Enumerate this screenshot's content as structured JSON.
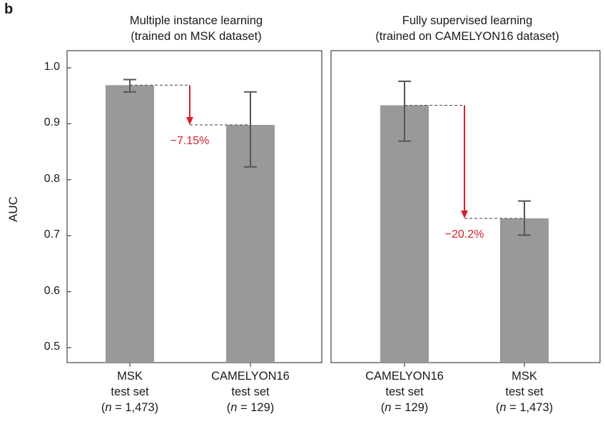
{
  "panel_label": "b",
  "y_axis_label": "AUC",
  "colors": {
    "bar": "#999999",
    "error": "#555555",
    "annotation": "#d61f2b",
    "frame": "#444444"
  },
  "chart_data": [
    {
      "type": "bar",
      "title": [
        "Multiple instance learning",
        "(trained on MSK dataset)"
      ],
      "ylabel": "AUC",
      "ylim": [
        0.47,
        1.03
      ],
      "yticks": [
        "0.5",
        "0.6",
        "0.7",
        "0.8",
        "0.9",
        "1.0"
      ],
      "categories": [
        {
          "lines": [
            "MSK",
            "test set",
            "(n = 1,473)"
          ],
          "value": 0.969,
          "err_low": 0.957,
          "err_high": 0.979
        },
        {
          "lines": [
            "CAMELYON16",
            "test set",
            "(n = 129)"
          ],
          "value": 0.898,
          "err_low": 0.823,
          "err_high": 0.957
        }
      ],
      "annotation": "−7.15%"
    },
    {
      "type": "bar",
      "title": [
        "Fully supervised learning",
        "(trained on CAMELYON16 dataset)"
      ],
      "ylabel": "",
      "ylim": [
        0.47,
        1.03
      ],
      "categories": [
        {
          "lines": [
            "CAMELYON16",
            "test set",
            "(n = 129)"
          ],
          "value": 0.933,
          "err_low": 0.869,
          "err_high": 0.976
        },
        {
          "lines": [
            "MSK",
            "test set",
            "(n = 1,473)"
          ],
          "value": 0.731,
          "err_low": 0.701,
          "err_high": 0.762
        }
      ],
      "annotation": "−20.2%"
    }
  ]
}
